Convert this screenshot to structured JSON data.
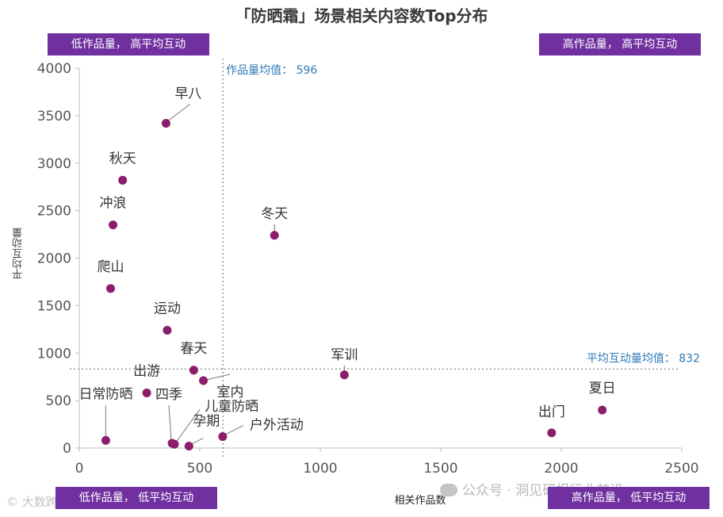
{
  "chart_data": {
    "type": "scatter",
    "title": "「防晒霜」场景相关内容数Top分布",
    "xlabel": "相关作品数",
    "ylabel": "平均互动量",
    "xlim": [
      0,
      2500
    ],
    "ylim": [
      0,
      4000
    ],
    "xticks": [
      "0",
      "500",
      "1000",
      "1500",
      "2000",
      "2500"
    ],
    "yticks": [
      "0",
      "500",
      "1000",
      "1500",
      "2000",
      "2500",
      "3000",
      "3500",
      "4000"
    ],
    "points": [
      {
        "label": "早八",
        "x": 360,
        "y": 3420
      },
      {
        "label": "秋天",
        "x": 180,
        "y": 2820
      },
      {
        "label": "冲浪",
        "x": 140,
        "y": 2350
      },
      {
        "label": "冬天",
        "x": 810,
        "y": 2240
      },
      {
        "label": "爬山",
        "x": 130,
        "y": 1680
      },
      {
        "label": "运动",
        "x": 365,
        "y": 1240
      },
      {
        "label": "春天",
        "x": 475,
        "y": 820
      },
      {
        "label": "军训",
        "x": 1100,
        "y": 770
      },
      {
        "label": "室内",
        "x": 515,
        "y": 710
      },
      {
        "label": "出游",
        "x": 280,
        "y": 580
      },
      {
        "label": "日常防晒",
        "x": 110,
        "y": 80
      },
      {
        "label": "四季",
        "x": 385,
        "y": 50
      },
      {
        "label": "儿童防晒",
        "x": 395,
        "y": 40
      },
      {
        "label": "孕期",
        "x": 455,
        "y": 20
      },
      {
        "label": "户外活动",
        "x": 595,
        "y": 120
      },
      {
        "label": "出门",
        "x": 1960,
        "y": 160
      },
      {
        "label": "夏日",
        "x": 2170,
        "y": 400
      }
    ],
    "reference_lines": {
      "x_mean": 596,
      "x_mean_label": "作品量均值： 596",
      "y_mean": 832,
      "y_mean_label": "平均互动量均值： 832"
    },
    "quadrants": {
      "top_left": "低作品量， 高平均互动",
      "top_right": "高作品量， 高平均互动",
      "bottom_left": "低作品量， 低平均互动",
      "bottom_right": "高作品量， 低平均互动"
    },
    "colors": {
      "point": "#8c1d6b",
      "quadrant_bg": "#7030a0",
      "mean_label": "#2e78b7"
    }
  },
  "watermark": {
    "main": "公众号 · 洞见研报行业前沿",
    "left": "大数跨境"
  }
}
